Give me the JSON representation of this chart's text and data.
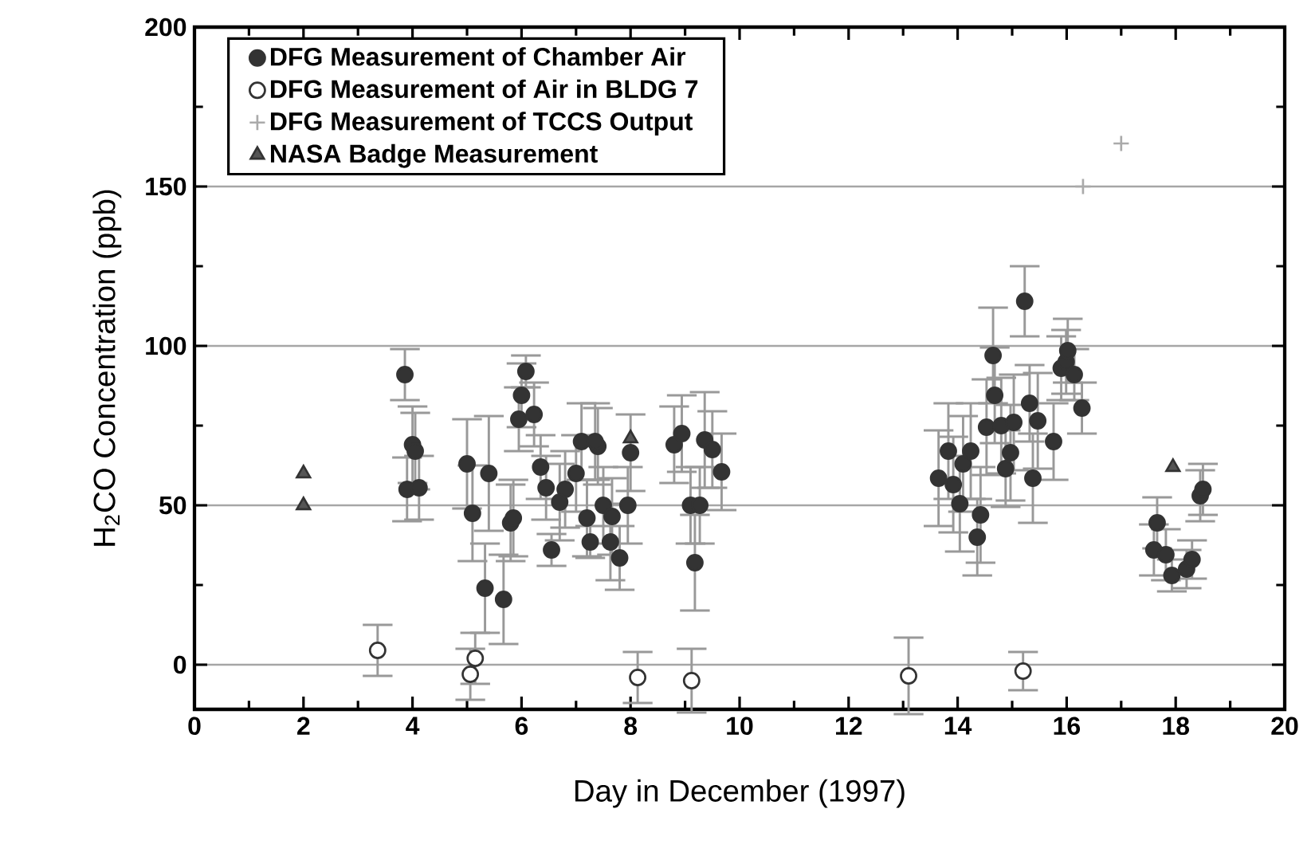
{
  "chart_data": {
    "type": "scatter",
    "xlabel": "Day in December (1997)",
    "ylabel": "H$_{2}$CO Concentration (ppb)",
    "xlim": [
      0,
      20
    ],
    "xticks": [
      0,
      2,
      4,
      6,
      8,
      10,
      12,
      14,
      16,
      18,
      20
    ],
    "ylim": [
      -14,
      200
    ],
    "yticks": [
      0,
      50,
      100,
      150,
      200
    ],
    "grid": "y",
    "legend": "top left",
    "series": [
      {
        "name": "DFG Measurement of Chamber Air",
        "color": "#333333",
        "marker": "circle",
        "x": [
          3.86,
          4.0,
          4.05,
          3.9,
          4.12,
          5.0,
          5.1,
          5.4,
          5.33,
          5.67,
          5.8,
          5.85,
          6.08,
          6.0,
          5.95,
          6.23,
          6.35,
          6.45,
          6.55,
          6.8,
          7.0,
          6.7,
          7.1,
          7.4,
          7.35,
          7.2,
          7.26,
          7.5,
          7.66,
          7.63,
          7.8,
          7.95,
          8.0,
          8.8,
          8.94,
          9.1,
          9.27,
          9.18,
          9.36,
          9.5,
          9.67,
          13.65,
          13.83,
          13.92,
          14.04,
          14.1,
          14.24,
          14.36,
          14.42,
          14.53,
          14.65,
          14.68,
          14.8,
          14.88,
          14.97,
          15.03,
          15.23,
          15.32,
          15.38,
          15.47,
          15.76,
          15.9,
          15.99,
          16.02,
          16.14,
          16.28,
          17.6,
          17.66,
          17.82,
          17.93,
          18.2,
          18.3,
          18.45,
          18.5
        ],
        "values": [
          91,
          69,
          67,
          55,
          55.5,
          63,
          47.5,
          60,
          24,
          20.5,
          44.5,
          46,
          92,
          84.5,
          77,
          78.5,
          62,
          55.5,
          36,
          55,
          60,
          51,
          70,
          68.5,
          70,
          46,
          38.5,
          50,
          46.5,
          38.5,
          33.5,
          50,
          66.5,
          69,
          72.5,
          50,
          50,
          32,
          70.5,
          67.5,
          60.5,
          58.5,
          67,
          56.5,
          50.5,
          63,
          67,
          40,
          47,
          74.5,
          97,
          84.5,
          75,
          61.5,
          66.5,
          76,
          114,
          82,
          58.5,
          76.5,
          70,
          93,
          95,
          98.5,
          91,
          80.5,
          36,
          44.5,
          34.5,
          28,
          30,
          33,
          53,
          55
        ],
        "errors": [
          8,
          12,
          12,
          10,
          10,
          14,
          15,
          18,
          14,
          14,
          12,
          12,
          5,
          10,
          10,
          10,
          10,
          10,
          5,
          12,
          12,
          12,
          12,
          12,
          12,
          12,
          5,
          12,
          12,
          12,
          10,
          12,
          12,
          12,
          12,
          12,
          12,
          15,
          15,
          12,
          12,
          15,
          15,
          15,
          15,
          15,
          15,
          12,
          15,
          15,
          15,
          15,
          15,
          12,
          15,
          15,
          11,
          12,
          14,
          15,
          12,
          10,
          10,
          10,
          8,
          8,
          8,
          8,
          8,
          5,
          6,
          6,
          8,
          8
        ]
      },
      {
        "name": "DFG Measurement of Air in BLDG 7",
        "color": "#ffffff",
        "marker": "circle",
        "x": [
          3.36,
          5.15,
          5.06,
          8.13,
          9.12,
          13.1,
          15.2
        ],
        "values": [
          4.5,
          2,
          -3,
          -4,
          -5,
          -3.5,
          -2
        ],
        "errors": [
          8,
          8,
          8,
          8,
          10,
          12,
          6
        ]
      },
      {
        "name": "DFG Measurement of TCCS Output",
        "color": "#aaaaaa",
        "marker": "cross",
        "x": [
          16.3,
          17.0
        ],
        "values": [
          150,
          163.5
        ]
      },
      {
        "name": "NASA Badge Measurement",
        "color": "#555555",
        "marker": "triangle",
        "x": [
          2.0,
          2.0,
          8.0,
          17.95
        ],
        "values": [
          60,
          50,
          71,
          62
        ]
      }
    ]
  }
}
